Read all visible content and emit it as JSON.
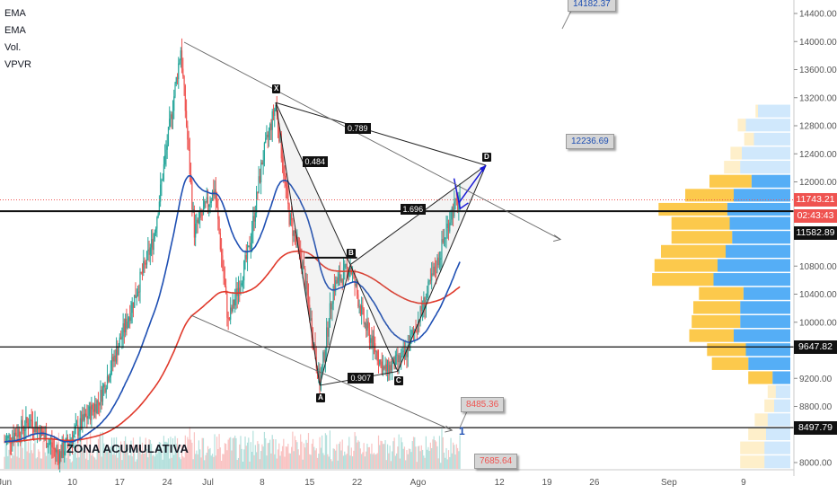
{
  "legend": [
    "EMA",
    "EMA",
    "Vol.",
    "VPVR"
  ],
  "zone_label": "ZONA ACUMULATIVA",
  "colors": {
    "up": "#26a69a",
    "down": "#ef5350",
    "ema_fast": "#1e4fb3",
    "ema_slow": "#e0392b",
    "vp_up": "#42a5f5",
    "vp_down": "#fbc02d",
    "pattern": "#222222",
    "arrow": "#1a1ad6"
  },
  "chart_data": {
    "type": "candlestick",
    "y_axis": {
      "min": 7900,
      "max": 14650,
      "ticks": [
        "14400.00",
        "14000.00",
        "13600.00",
        "13200.00",
        "12800.00",
        "12400.00",
        "12000.00",
        "10800.00",
        "10400.00",
        "10000.00",
        "9200.00",
        "8800.00",
        "8000.00"
      ],
      "tick_values": [
        14400,
        14000,
        13600,
        13200,
        12800,
        12400,
        12000,
        10800,
        10400,
        10000,
        9200,
        8800,
        8000
      ]
    },
    "x_axis": {
      "labels": [
        "Jun",
        "10",
        "17",
        "24",
        "Jul",
        "8",
        "15",
        "22",
        "Ago",
        "12",
        "19",
        "26",
        "Sep",
        "9"
      ],
      "label_days": [
        0,
        10,
        17,
        24,
        30,
        38,
        45,
        52,
        61,
        73,
        80,
        87,
        98,
        109
      ]
    },
    "key_points": [
      {
        "day": 0,
        "price": 8300
      },
      {
        "day": 4,
        "price": 8600
      },
      {
        "day": 8,
        "price": 8100
      },
      {
        "day": 14,
        "price": 8900
      },
      {
        "day": 18,
        "price": 10000
      },
      {
        "day": 22,
        "price": 11200
      },
      {
        "day": 26,
        "price": 13900
      },
      {
        "day": 28,
        "price": 11300
      },
      {
        "day": 31,
        "price": 11900
      },
      {
        "day": 33,
        "price": 10000
      },
      {
        "day": 36,
        "price": 11000
      },
      {
        "day": 38,
        "price": 12300
      },
      {
        "day": 40,
        "price": 13100
      },
      {
        "day": 42,
        "price": 11500
      },
      {
        "day": 44,
        "price": 10800
      },
      {
        "day": 46.5,
        "price": 9100
      },
      {
        "day": 48.5,
        "price": 10500
      },
      {
        "day": 51,
        "price": 10800
      },
      {
        "day": 53,
        "price": 10000
      },
      {
        "day": 56,
        "price": 9300
      },
      {
        "day": 59,
        "price": 9500
      },
      {
        "day": 62,
        "price": 10300
      },
      {
        "day": 64,
        "price": 10900
      },
      {
        "day": 66,
        "price": 11600
      },
      {
        "day": 67,
        "price": 11700
      }
    ],
    "horizontal_levels": [
      {
        "price": 11582.89,
        "label": "11582.89",
        "style": "solid"
      },
      {
        "price": 9647.82,
        "label": "9647.82",
        "style": "solid"
      },
      {
        "price": 8497.79,
        "label": "8497.79",
        "style": "solid"
      },
      {
        "price": 11743.21,
        "label": "11743.21",
        "style": "dotted"
      }
    ],
    "current_price": {
      "price": 11743.21,
      "label": "11743.21",
      "countdown": "02:43:43"
    },
    "harmonic_pattern": {
      "points": [
        {
          "name": "X",
          "day": 40,
          "price": 13130
        },
        {
          "name": "A",
          "day": 46.5,
          "price": 9100
        },
        {
          "name": "B",
          "day": 51,
          "price": 10820
        },
        {
          "name": "C",
          "day": 58,
          "price": 9300
        },
        {
          "name": "D",
          "day": 71,
          "price": 12236.69
        }
      ],
      "ratios": [
        "0.789",
        "0.484",
        "1.696",
        "0.907"
      ]
    },
    "callouts": [
      "14182.37",
      "12236.69",
      "8485.36",
      "7685.64"
    ],
    "volume_profile": [
      {
        "price": 13000,
        "up": 3,
        "down": 40
      },
      {
        "price": 12800,
        "up": 10,
        "down": 55
      },
      {
        "price": 12600,
        "up": 12,
        "down": 45
      },
      {
        "price": 12400,
        "up": 14,
        "down": 60
      },
      {
        "price": 12200,
        "up": 20,
        "down": 62
      },
      {
        "price": 12000,
        "up": 52,
        "down": 48
      },
      {
        "price": 11800,
        "up": 60,
        "down": 70
      },
      {
        "price": 11600,
        "up": 85,
        "down": 78
      },
      {
        "price": 11400,
        "up": 72,
        "down": 75
      },
      {
        "price": 11200,
        "up": 75,
        "down": 72
      },
      {
        "price": 11000,
        "up": 80,
        "down": 80
      },
      {
        "price": 10800,
        "up": 78,
        "down": 90
      },
      {
        "price": 10600,
        "up": 76,
        "down": 95
      },
      {
        "price": 10400,
        "up": 55,
        "down": 58
      },
      {
        "price": 10200,
        "up": 58,
        "down": 62
      },
      {
        "price": 10000,
        "up": 60,
        "down": 62
      },
      {
        "price": 9800,
        "up": 55,
        "down": 70
      },
      {
        "price": 9600,
        "up": 48,
        "down": 55
      },
      {
        "price": 9400,
        "up": 45,
        "down": 52
      },
      {
        "price": 9200,
        "up": 30,
        "down": 22
      },
      {
        "price": 9000,
        "up": 10,
        "down": 18
      },
      {
        "price": 8800,
        "up": 12,
        "down": 20
      },
      {
        "price": 8600,
        "up": 16,
        "down": 28
      },
      {
        "price": 8400,
        "up": 22,
        "down": 30
      },
      {
        "price": 8200,
        "up": 30,
        "down": 32
      },
      {
        "price": 8000,
        "up": 30,
        "down": 32
      }
    ]
  }
}
